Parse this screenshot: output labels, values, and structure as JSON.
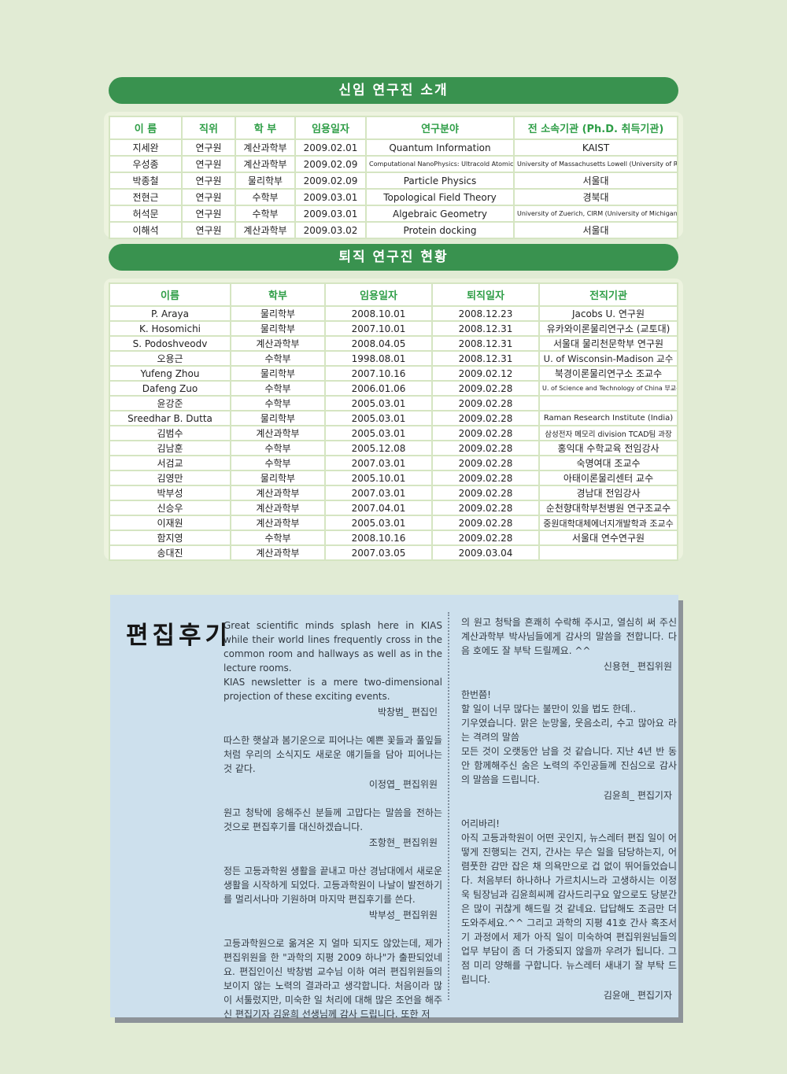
{
  "colors": {
    "page_bg": "#e1ebd4",
    "banner_green": "#39924f",
    "header_text_green": "#2f9e47",
    "note_box_blue": "#cde0ed",
    "shadow_gray": "#8d9399"
  },
  "new_researchers": {
    "title": "신임 연구진 소개",
    "headers": [
      "이 름",
      "직위",
      "학 부",
      "임용일자",
      "연구분야",
      "전 소속기관 (Ph.D. 취득기관)"
    ],
    "rows": [
      [
        "지세완",
        "연구원",
        "계산과학부",
        "2009.02.01",
        "Quantum Information",
        "KAIST"
      ],
      [
        "우성종",
        "연구원",
        "계산과학부",
        "2009.02.09",
        "Computational NanoPhysics: Ultracold Atomic Gas",
        "University of Massachusetts Lowell (University of Rochester)"
      ],
      [
        "박종철",
        "연구원",
        "물리학부",
        "2009.02.09",
        "Particle Physics",
        "서울대"
      ],
      [
        "전현근",
        "연구원",
        "수학부",
        "2009.03.01",
        "Topological Field Theory",
        "경북대"
      ],
      [
        "허석문",
        "연구원",
        "수학부",
        "2009.03.01",
        "Algebraic Geometry",
        "University of Zuerich, CIRM (University of Michigan)"
      ],
      [
        "이해석",
        "연구원",
        "계산과학부",
        "2009.03.02",
        "Protein docking",
        "서울대"
      ]
    ]
  },
  "retired_researchers": {
    "title": "퇴직 연구진 현황",
    "headers": [
      "이름",
      "학부",
      "임용일자",
      "퇴직일자",
      "전직기관"
    ],
    "rows": [
      [
        "P. Araya",
        "물리학부",
        "2008.10.01",
        "2008.12.23",
        "Jacobs U. 연구원"
      ],
      [
        "K. Hosomichi",
        "물리학부",
        "2007.10.01",
        "2008.12.31",
        "유카와이론물리연구소 (교토대)"
      ],
      [
        "S. Podoshveodv",
        "계산과학부",
        "2008.04.05",
        "2008.12.31",
        "서울대 물리천문학부 연구원"
      ],
      [
        "오용근",
        "수학부",
        "1998.08.01",
        "2008.12.31",
        "U. of Wisconsin-Madison 교수"
      ],
      [
        "Yufeng Zhou",
        "물리학부",
        "2007.10.16",
        "2009.02.12",
        "북경이론물리연구소 조교수"
      ],
      [
        "Dafeng Zuo",
        "수학부",
        "2006.01.06",
        "2009.02.28",
        "U. of Science and Technology of China 부교수"
      ],
      [
        "윤강준",
        "수학부",
        "2005.03.01",
        "2009.02.28",
        ""
      ],
      [
        "Sreedhar B. Dutta",
        "물리학부",
        "2005.03.01",
        "2009.02.28",
        "Raman Research Institute (India)"
      ],
      [
        "김범수",
        "계산과학부",
        "2005.03.01",
        "2009.02.28",
        "삼성전자 메모리 division TCAD팀 과장"
      ],
      [
        "김남훈",
        "수학부",
        "2005.12.08",
        "2009.02.28",
        "홍익대 수학교육 전임강사"
      ],
      [
        "서검교",
        "수학부",
        "2007.03.01",
        "2009.02.28",
        "숙명여대 조교수"
      ],
      [
        "김영만",
        "물리학부",
        "2005.10.01",
        "2009.02.28",
        "아태이론물리센터 교수"
      ],
      [
        "박부성",
        "계산과학부",
        "2007.03.01",
        "2009.02.28",
        "경남대 전임강사"
      ],
      [
        "신승우",
        "계산과학부",
        "2007.04.01",
        "2009.02.28",
        "순천향대학부천병원 연구조교수"
      ],
      [
        "이재원",
        "계산과학부",
        "2005.03.01",
        "2009.02.28",
        "중원대학대체에너지개발학과 조교수"
      ],
      [
        "함지영",
        "수학부",
        "2008.10.16",
        "2009.02.28",
        "서울대 연수연구원"
      ],
      [
        "송대진",
        "계산과학부",
        "2007.03.05",
        "2009.03.04",
        ""
      ]
    ]
  },
  "editors_note": {
    "title": "편집후기",
    "left_notes": [
      {
        "lines": [
          "Great scientific minds splash here in KIAS while their world lines frequently cross in the common room and hallways as well as in the lecture rooms.",
          "KIAS newsletter is a mere two-dimensional projection of these exciting events."
        ],
        "sig": "박창범_ 편집인"
      },
      {
        "lines": [
          "따스한 햇살과 봄기운으로 피어나는 예쁜 꽃들과 풀잎들처럼 우리의 소식지도 새로운 얘기들을 담아 피어나는 것 같다."
        ],
        "sig": "이정엽_ 편집위원"
      },
      {
        "lines": [
          "원고 청탁에 응해주신 분들께 고맙다는 말씀을 전하는 것으로 편집후기를 대신하겠습니다."
        ],
        "sig": "조항현_ 편집위원"
      },
      {
        "lines": [
          "정든 고등과학원 생활을 끝내고 마산 경남대에서 새로운 생활을 시작하게 되었다. 고등과학원이 나날이 발전하기를 멀리서나마 기원하며 마지막 편집후기를 쓴다."
        ],
        "sig": "박부성_ 편집위원"
      },
      {
        "lines": [
          "고등과학원으로 옮겨온 지 얼마 되지도 않았는데, 제가 편집위원을 한 \"과학의 지평 2009 하나\"가 출판되었네요. 편집인이신 박창범 교수님 이하 여러 편집위원들의 보이지 않는 노력의 결과라고 생각합니다. 처음이라 많이 서툴렀지만, 미숙한 일 처리에 대해 많은 조언을 해주신 편집기자 김윤희 선생님께 감사 드립니다. 또한 저"
        ],
        "sig": ""
      }
    ],
    "right_notes": [
      {
        "lines": [
          "의 원고 청탁을 흔쾌히 수락해 주시고, 열심히 써 주신 계산과학부 박사님들에게 감사의 말씀을 전합니다. 다음 호에도 잘 부탁 드릴께요. ^^"
        ],
        "sig": "신용현_ 편집위원"
      },
      {
        "lines": [
          "한번쯤!",
          "할 일이 너무 많다는 불만이 있을 법도 한데..",
          "기우였습니다. 맑은 눈망울, 웃음소리, 수고 많아요 라는 격려의 말씀",
          "모든 것이 오랫동안 남을 것 같습니다. 지난 4년 반 동안 함께해주신 숨은 노력의 주인공들께 진심으로 감사의 말씀을 드립니다."
        ],
        "sig": "김윤희_ 편집기자"
      },
      {
        "lines": [
          "어리바리!",
          "아직 고등과학원이 어떤 곳인지, 뉴스레터 편집 일이 어떻게 진행되는 건지, 간사는 무슨 일을 담당하는지, 어렴풋한 감만 잡은 채 의욕만으로 겁 없이 뛰어들었습니다. 처음부터 하나하나 가르치시느라 고생하시는 이정욱 팀장님과 김윤희씨께 감사드리구요 앞으로도 당분간은 많이 귀찮게 해드릴 것 같네요. 답답해도 조금만 더 도와주세요.^^ 그리고 과학의 지평 41호 간사 혹조서기 과정에서 제가 아직 일이 미숙하여 편집위원님들의 업무 부담이 좀 더 가중되지 않을까 우려가 됩니다. 그 점 미리 양해를 구합니다. 뉴스레터 새내기 잘 부탁 드립니다."
        ],
        "sig": "김윤애_ 편집기자"
      }
    ]
  }
}
